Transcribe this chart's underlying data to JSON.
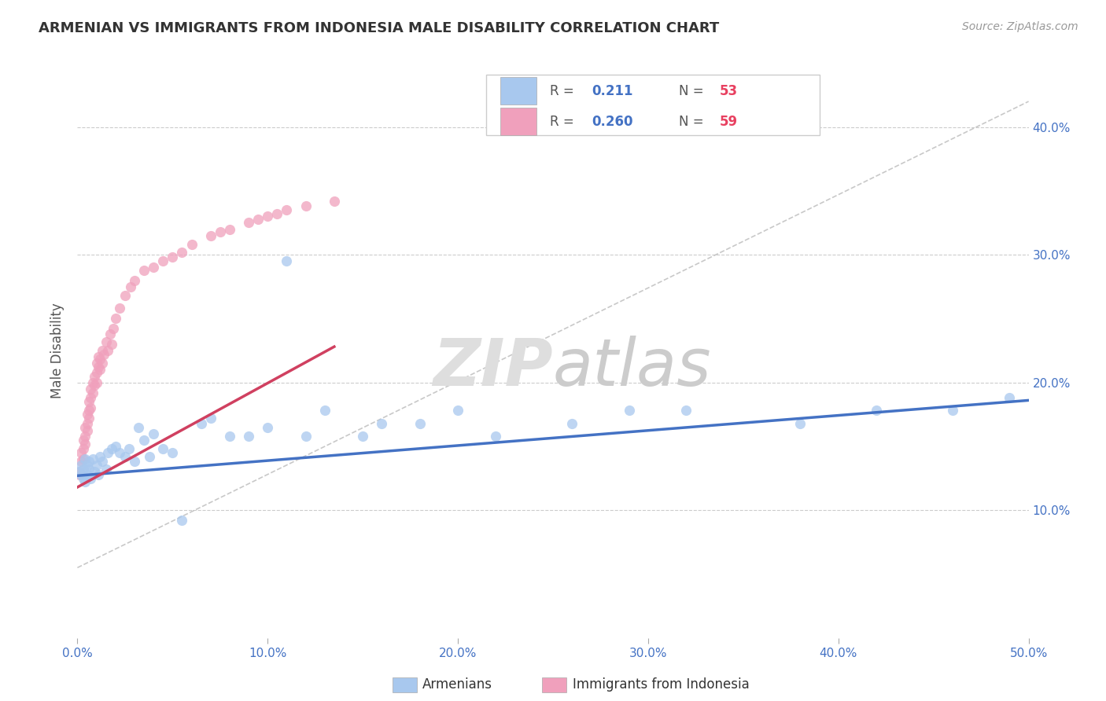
{
  "title": "ARMENIAN VS IMMIGRANTS FROM INDONESIA MALE DISABILITY CORRELATION CHART",
  "source_text": "Source: ZipAtlas.com",
  "ylabel": "Male Disability",
  "xlim": [
    0.0,
    0.5
  ],
  "ylim": [
    0.0,
    0.45
  ],
  "xtick_labels": [
    "0.0%",
    "10.0%",
    "20.0%",
    "30.0%",
    "40.0%",
    "50.0%"
  ],
  "xtick_values": [
    0.0,
    0.1,
    0.2,
    0.3,
    0.4,
    0.5
  ],
  "ytick_labels": [
    "10.0%",
    "20.0%",
    "30.0%",
    "40.0%"
  ],
  "ytick_values": [
    0.1,
    0.2,
    0.3,
    0.4
  ],
  "blue_color": "#A8C8EE",
  "pink_color": "#F0A0BC",
  "blue_line_color": "#4472C4",
  "pink_line_color": "#D04060",
  "background_color": "#FFFFFF",
  "armenians_x": [
    0.001,
    0.002,
    0.002,
    0.003,
    0.003,
    0.004,
    0.004,
    0.005,
    0.005,
    0.006,
    0.006,
    0.007,
    0.008,
    0.009,
    0.01,
    0.011,
    0.012,
    0.013,
    0.015,
    0.016,
    0.018,
    0.02,
    0.022,
    0.025,
    0.027,
    0.03,
    0.032,
    0.035,
    0.038,
    0.04,
    0.045,
    0.05,
    0.055,
    0.065,
    0.07,
    0.08,
    0.09,
    0.1,
    0.11,
    0.12,
    0.13,
    0.15,
    0.16,
    0.18,
    0.2,
    0.22,
    0.26,
    0.29,
    0.32,
    0.38,
    0.42,
    0.46,
    0.49
  ],
  "armenians_y": [
    0.13,
    0.135,
    0.128,
    0.132,
    0.125,
    0.14,
    0.122,
    0.135,
    0.128,
    0.132,
    0.138,
    0.125,
    0.14,
    0.13,
    0.135,
    0.128,
    0.142,
    0.138,
    0.132,
    0.145,
    0.148,
    0.15,
    0.145,
    0.142,
    0.148,
    0.138,
    0.165,
    0.155,
    0.142,
    0.16,
    0.148,
    0.145,
    0.092,
    0.168,
    0.172,
    0.158,
    0.158,
    0.165,
    0.295,
    0.158,
    0.178,
    0.158,
    0.168,
    0.168,
    0.178,
    0.158,
    0.168,
    0.178,
    0.178,
    0.168,
    0.178,
    0.178,
    0.188
  ],
  "indonesia_x": [
    0.001,
    0.001,
    0.002,
    0.002,
    0.003,
    0.003,
    0.003,
    0.004,
    0.004,
    0.004,
    0.005,
    0.005,
    0.005,
    0.006,
    0.006,
    0.006,
    0.007,
    0.007,
    0.007,
    0.008,
    0.008,
    0.009,
    0.009,
    0.01,
    0.01,
    0.01,
    0.011,
    0.011,
    0.012,
    0.012,
    0.013,
    0.013,
    0.014,
    0.015,
    0.016,
    0.017,
    0.018,
    0.019,
    0.02,
    0.022,
    0.025,
    0.028,
    0.03,
    0.035,
    0.04,
    0.045,
    0.05,
    0.055,
    0.06,
    0.07,
    0.075,
    0.08,
    0.09,
    0.095,
    0.1,
    0.105,
    0.11,
    0.12,
    0.135
  ],
  "indonesia_y": [
    0.13,
    0.128,
    0.145,
    0.138,
    0.155,
    0.148,
    0.14,
    0.165,
    0.158,
    0.152,
    0.175,
    0.168,
    0.162,
    0.185,
    0.178,
    0.172,
    0.195,
    0.188,
    0.18,
    0.2,
    0.192,
    0.205,
    0.198,
    0.215,
    0.208,
    0.2,
    0.22,
    0.212,
    0.218,
    0.21,
    0.225,
    0.215,
    0.222,
    0.232,
    0.225,
    0.238,
    0.23,
    0.242,
    0.25,
    0.258,
    0.268,
    0.275,
    0.28,
    0.288,
    0.29,
    0.295,
    0.298,
    0.302,
    0.308,
    0.315,
    0.318,
    0.32,
    0.325,
    0.328,
    0.33,
    0.332,
    0.335,
    0.338,
    0.342
  ],
  "diag_line_x": [
    0.0,
    0.5
  ],
  "diag_line_y": [
    0.0,
    0.45
  ]
}
